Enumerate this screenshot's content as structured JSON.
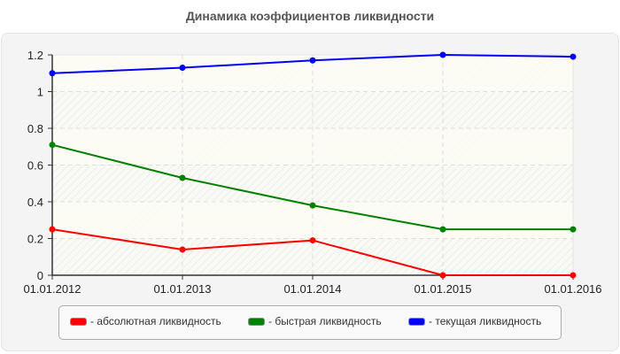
{
  "title": "Динамика коэффициентов ликвидности",
  "chart_data": {
    "type": "line",
    "title": "Динамика коэффициентов ликвидности",
    "xlabel": "",
    "ylabel": "",
    "categories": [
      "01.01.2012",
      "01.01.2013",
      "01.01.2014",
      "01.01.2015",
      "01.01.2016"
    ],
    "y_ticks": [
      "0",
      "0.2",
      "0.4",
      "0.6",
      "0.8",
      "1",
      "1.2"
    ],
    "ylim": [
      0,
      1.2
    ],
    "grid": true,
    "legend_position": "bottom",
    "series": [
      {
        "name": "- абсолютная ликвидность",
        "color": "#ff0000",
        "values": [
          0.25,
          0.14,
          0.19,
          0.0,
          0.0
        ]
      },
      {
        "name": "- быстрая ликвидность",
        "color": "#008000",
        "values": [
          0.71,
          0.53,
          0.38,
          0.25,
          0.25
        ]
      },
      {
        "name": "- текущая ликвидность",
        "color": "#0000ff",
        "values": [
          1.1,
          1.13,
          1.17,
          1.2,
          1.19
        ]
      }
    ]
  },
  "legend": {
    "items": [
      {
        "label": "- абсолютная ликвидность",
        "color": "#ff0000"
      },
      {
        "label": "- быстрая ликвидность",
        "color": "#008000"
      },
      {
        "label": "- текущая ликвидность",
        "color": "#0000ff"
      }
    ]
  }
}
